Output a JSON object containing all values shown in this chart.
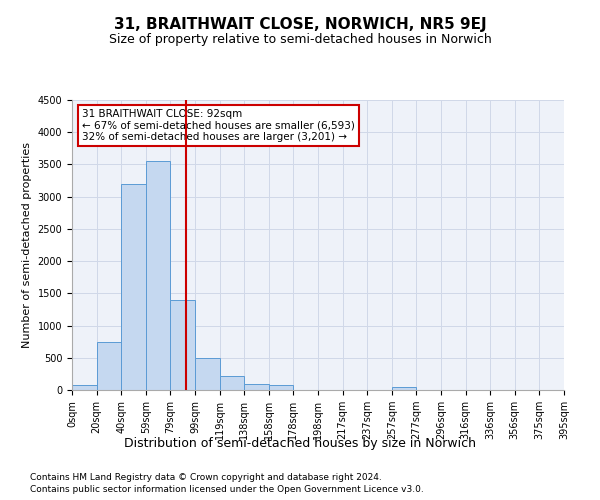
{
  "title": "31, BRAITHWAIT CLOSE, NORWICH, NR5 9EJ",
  "subtitle": "Size of property relative to semi-detached houses in Norwich",
  "xlabel": "Distribution of semi-detached houses by size in Norwich",
  "ylabel": "Number of semi-detached properties",
  "footnote1": "Contains HM Land Registry data © Crown copyright and database right 2024.",
  "footnote2": "Contains public sector information licensed under the Open Government Licence v3.0.",
  "bin_labels": [
    "0sqm",
    "20sqm",
    "40sqm",
    "59sqm",
    "79sqm",
    "99sqm",
    "119sqm",
    "138sqm",
    "158sqm",
    "178sqm",
    "198sqm",
    "217sqm",
    "237sqm",
    "257sqm",
    "277sqm",
    "296sqm",
    "316sqm",
    "336sqm",
    "356sqm",
    "375sqm",
    "395sqm"
  ],
  "bar_heights": [
    75,
    750,
    3200,
    3550,
    1400,
    500,
    220,
    100,
    75,
    0,
    0,
    0,
    0,
    40,
    0,
    0,
    0,
    0,
    0,
    0
  ],
  "bar_color": "#c5d8f0",
  "bar_edge_color": "#5b9bd5",
  "grid_color": "#d0d8e8",
  "bg_color": "#eef2f9",
  "property_bin": 4,
  "property_label": "31 BRAITHWAIT CLOSE: 92sqm",
  "pct_smaller": 67,
  "n_smaller": 6593,
  "pct_larger": 32,
  "n_larger": 3201,
  "vline_color": "#cc0000",
  "annotation_box_color": "#cc0000",
  "ylim": [
    0,
    4500
  ],
  "yticks": [
    0,
    500,
    1000,
    1500,
    2000,
    2500,
    3000,
    3500,
    4000,
    4500
  ],
  "title_fontsize": 11,
  "subtitle_fontsize": 9,
  "ylabel_fontsize": 8,
  "xlabel_fontsize": 9,
  "tick_fontsize": 7,
  "footnote_fontsize": 6.5,
  "annot_fontsize": 7.5
}
